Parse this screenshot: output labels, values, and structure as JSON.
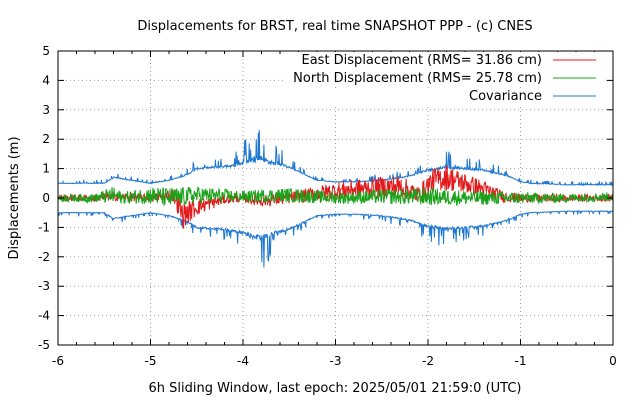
{
  "chart_data": {
    "type": "line",
    "title": "Displacements for BRST, real time SNAPSHOT PPP - (c) CNES",
    "xlabel": "6h Sliding Window, last epoch: 2025/05/01 21:59:0 (UTC)",
    "ylabel": "Displacements (m)",
    "xlim": [
      -6,
      0
    ],
    "ylim": [
      -5,
      5
    ],
    "x_ticks": [
      "-6",
      "-5",
      "-4",
      "-3",
      "-2",
      "-1",
      "0"
    ],
    "y_ticks": [
      "-5",
      "-4",
      "-3",
      "-2",
      "-1",
      "0",
      "1",
      "2",
      "3",
      "4",
      "5"
    ],
    "grid": true,
    "legend_position": "top-right",
    "series": [
      {
        "name": "East Displacement (RMS= 31.86 cm)",
        "color": "#e31a1c",
        "kind": "noisy-line",
        "x": [
          -6.0,
          -5.6,
          -5.4,
          -5.0,
          -4.75,
          -4.65,
          -4.5,
          -4.2,
          -4.0,
          -3.8,
          -3.5,
          -3.0,
          -2.6,
          -2.3,
          -2.1,
          -1.95,
          -1.8,
          -1.6,
          -1.4,
          -1.2,
          -1.0,
          -0.5,
          0.0
        ],
        "y": [
          0.0,
          0.0,
          0.05,
          0.0,
          0.1,
          -0.6,
          -0.3,
          -0.05,
          0.0,
          -0.1,
          0.0,
          0.25,
          0.35,
          0.4,
          0.1,
          0.6,
          0.7,
          0.5,
          0.3,
          0.05,
          0.0,
          0.0,
          0.0
        ],
        "noise": [
          0.12,
          0.12,
          0.15,
          0.12,
          0.25,
          0.45,
          0.3,
          0.15,
          0.15,
          0.2,
          0.2,
          0.3,
          0.35,
          0.4,
          0.3,
          0.4,
          0.45,
          0.35,
          0.3,
          0.2,
          0.15,
          0.12,
          0.12
        ]
      },
      {
        "name": "North Displacement (RMS= 25.78 cm)",
        "color": "#1aa31a",
        "kind": "noisy-line",
        "x": [
          -6.0,
          -5.6,
          -5.4,
          -5.3,
          -5.0,
          -4.8,
          -4.5,
          -4.0,
          -3.5,
          -3.0,
          -2.5,
          -2.0,
          -1.5,
          -1.0,
          -0.5,
          0.0
        ],
        "y": [
          0.0,
          0.0,
          0.1,
          0.0,
          0.1,
          0.0,
          0.1,
          0.05,
          0.1,
          0.0,
          0.05,
          0.05,
          0.0,
          0.0,
          0.0,
          0.05
        ],
        "noise": [
          0.12,
          0.15,
          0.3,
          0.2,
          0.3,
          0.35,
          0.3,
          0.2,
          0.25,
          0.2,
          0.25,
          0.3,
          0.25,
          0.2,
          0.15,
          0.15
        ]
      },
      {
        "name": "Covariance",
        "color": "#1f78d4",
        "kind": "envelope",
        "x": [
          -6.0,
          -5.5,
          -5.4,
          -5.2,
          -5.0,
          -4.8,
          -4.7,
          -4.6,
          -4.5,
          -4.3,
          -4.1,
          -4.0,
          -3.9,
          -3.8,
          -3.7,
          -3.6,
          -3.5,
          -3.2,
          -3.0,
          -2.8,
          -2.5,
          -2.2,
          -2.0,
          -1.9,
          -1.8,
          -1.6,
          -1.4,
          -1.2,
          -1.1,
          -1.0,
          -0.9,
          -0.5,
          0.0
        ],
        "y": [
          0.5,
          0.5,
          0.7,
          0.6,
          0.5,
          0.6,
          0.7,
          0.8,
          1.0,
          1.05,
          1.1,
          1.2,
          1.3,
          1.35,
          1.2,
          1.15,
          1.05,
          0.6,
          0.55,
          0.55,
          0.6,
          0.75,
          0.95,
          1.0,
          1.05,
          1.0,
          0.95,
          0.8,
          0.7,
          0.55,
          0.5,
          0.45,
          0.45
        ],
        "noise": [
          0.05,
          0.05,
          0.1,
          0.05,
          0.05,
          0.05,
          0.1,
          0.1,
          0.15,
          0.15,
          0.2,
          0.3,
          0.45,
          0.5,
          0.35,
          0.25,
          0.15,
          0.05,
          0.05,
          0.05,
          0.1,
          0.1,
          0.25,
          0.25,
          0.25,
          0.2,
          0.15,
          0.1,
          0.1,
          0.05,
          0.05,
          0.05,
          0.05
        ]
      }
    ]
  }
}
